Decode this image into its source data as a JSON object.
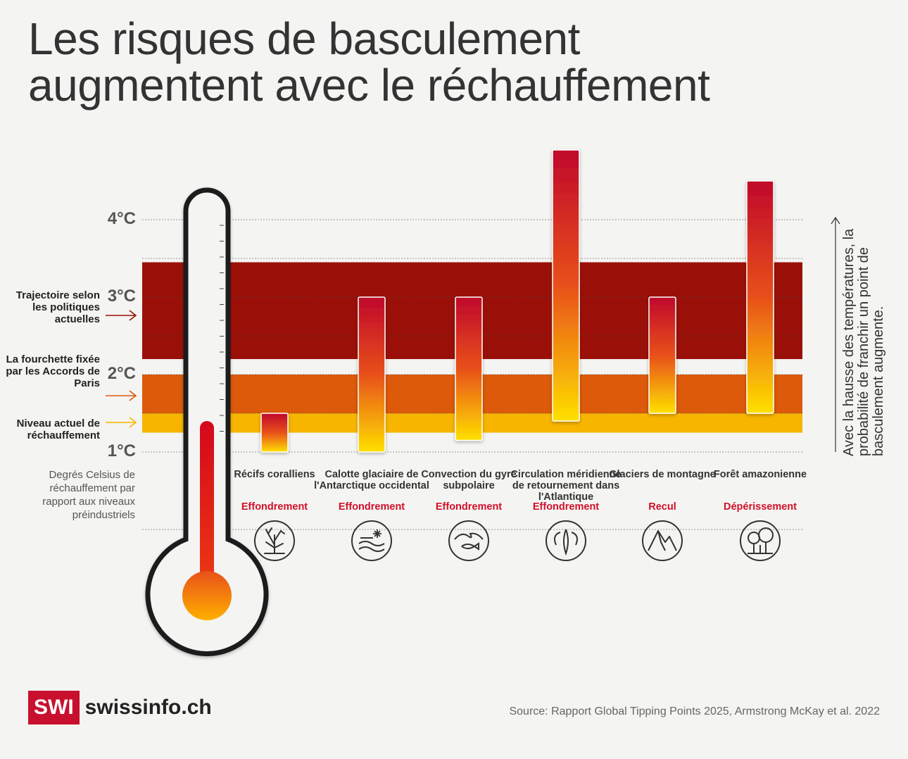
{
  "title_lines": [
    "Les risques de basculement",
    "augmentent avec le réchauffement"
  ],
  "colors": {
    "band_policy": "#9a1008",
    "band_paris": "#dc5a0a",
    "band_current": "#f7b500",
    "bar_top": "#c0082c",
    "bar_mid": "#e8501a",
    "bar_bottom": "#ffe000",
    "effect_text": "#d2102a",
    "brand": "#c8102e"
  },
  "bands": [
    {
      "key": "policy",
      "label": "Trajectoire selon les politiques actuelles",
      "from": 2.2,
      "to": 3.45,
      "arrow_color": "#9a1008"
    },
    {
      "key": "paris",
      "label": "La fourchette fixée par les Accords de Paris",
      "from": 1.5,
      "to": 2.0,
      "arrow_color": "#dc5a0a"
    },
    {
      "key": "current",
      "label": "Niveau actuel de réchauffement",
      "from": 1.25,
      "to": 1.5,
      "arrow_color": "#f7b500"
    }
  ],
  "axis_note": "Degrés Celsius de réchauffement par rapport aux niveaux préindustriels",
  "side_note": "Avec la hausse des températures, la probabilité de franchir un point de basculement augmente.",
  "chart_data": {
    "type": "bar",
    "subtype": "floating-range",
    "ylim": [
      1,
      4.9
    ],
    "y_ticks": [
      {
        "value": 1,
        "label": "1°C"
      },
      {
        "value": 2,
        "label": "2°C"
      },
      {
        "value": 3,
        "label": "3°C"
      },
      {
        "value": 4,
        "label": "4°C"
      }
    ],
    "current_warming": 1.4,
    "categories": [
      {
        "name": "Récifs coralliens",
        "effect": "Effondrement",
        "icon": "coral-icon",
        "low": 1.0,
        "high": 1.5
      },
      {
        "name": "Calotte glaciaire de l'Antarctique occidental",
        "effect": "Effondrement",
        "icon": "ice-sheet-icon",
        "low": 1.0,
        "high": 3.0
      },
      {
        "name": "Convection du gyre subpolaire",
        "effect": "Effondrement",
        "icon": "wave-icon",
        "low": 1.15,
        "high": 3.0
      },
      {
        "name": "Circulation méridienne de retournement dans l'Atlantique",
        "effect": "Effondrement",
        "icon": "ocean-current-icon",
        "low": 1.4,
        "high": 4.9
      },
      {
        "name": "Glaciers de montagne",
        "effect": "Recul",
        "icon": "mountain-icon",
        "low": 1.5,
        "high": 3.0
      },
      {
        "name": "Forêt amazonienne",
        "effect": "Dépérissement",
        "icon": "forest-icon",
        "low": 1.5,
        "high": 4.5
      }
    ]
  },
  "logo": {
    "box": "SWI",
    "text": "swissinfo.ch"
  },
  "source": "Source: Rapport Global Tipping Points 2025, Armstrong McKay et al. 2022"
}
